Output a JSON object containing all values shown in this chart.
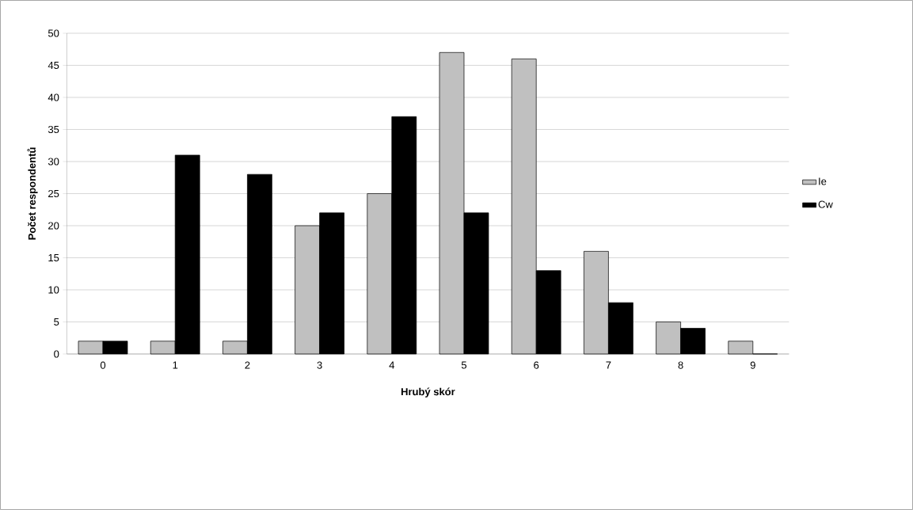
{
  "chart_data": {
    "type": "bar",
    "xlabel": "Hrubý skór",
    "ylabel": "Počet respondentů",
    "categories": [
      "0",
      "1",
      "2",
      "3",
      "4",
      "5",
      "6",
      "7",
      "8",
      "9"
    ],
    "series": [
      {
        "name": "Ie",
        "color": "#c0c0c0",
        "values": [
          2,
          2,
          2,
          20,
          25,
          47,
          46,
          16,
          5,
          2
        ]
      },
      {
        "name": "Cw",
        "color": "#000000",
        "values": [
          2,
          31,
          28,
          22,
          37,
          22,
          13,
          8,
          4,
          0
        ]
      }
    ],
    "ylim": [
      0,
      50
    ],
    "yticks": [
      0,
      5,
      10,
      15,
      20,
      25,
      30,
      35,
      40,
      45,
      50
    ],
    "grid": "y",
    "legend": "right"
  }
}
